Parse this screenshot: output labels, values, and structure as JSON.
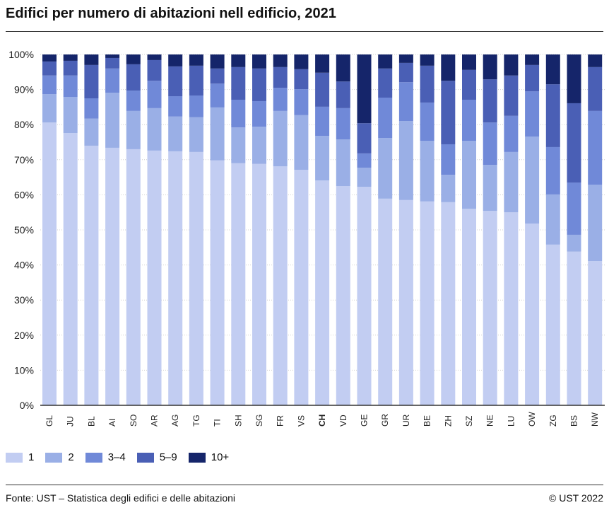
{
  "title": "Edifici per numero di abitazioni nell edificio, 2021",
  "source": "Fonte: UST – Statistica degli edifici e delle abitazioni",
  "copyright": "© UST 2022",
  "chart_data": {
    "type": "bar",
    "stacked": true,
    "title": "Edifici per numero di abitazioni nell edificio, 2021",
    "ylim": [
      0,
      100
    ],
    "yticks": [
      "0%",
      "10%",
      "20%",
      "30%",
      "40%",
      "50%",
      "60%",
      "70%",
      "80%",
      "90%",
      "100%"
    ],
    "grid": true,
    "legend_placement": "bottom-left",
    "highlight_category": "CH",
    "categories": [
      "GL",
      "JU",
      "BL",
      "AI",
      "SO",
      "AR",
      "AG",
      "TG",
      "TI",
      "SH",
      "SG",
      "FR",
      "VS",
      "CH",
      "VD",
      "GE",
      "GR",
      "UR",
      "BE",
      "ZH",
      "SZ",
      "NE",
      "LU",
      "OW",
      "ZG",
      "BS",
      "NW"
    ],
    "series": [
      {
        "name": "1",
        "color": "#c2cdf2",
        "values": [
          80.6,
          77.6,
          74.0,
          73.4,
          73.0,
          72.6,
          72.4,
          72.2,
          69.8,
          69.0,
          68.8,
          68.1,
          67.1,
          64.1,
          62.5,
          62.3,
          58.9,
          58.5,
          58.1,
          57.9,
          56.0,
          55.4,
          55.0,
          51.8,
          45.8,
          43.8,
          41.1
        ]
      },
      {
        "name": "2",
        "color": "#9aafe6",
        "values": [
          8.1,
          10.3,
          7.7,
          15.7,
          10.9,
          12.1,
          9.9,
          9.9,
          15.1,
          10.2,
          10.6,
          15.8,
          15.6,
          12.7,
          13.3,
          5.4,
          17.3,
          22.5,
          17.3,
          7.8,
          19.4,
          13.1,
          17.2,
          24.8,
          14.3,
          4.8,
          21.8
        ]
      },
      {
        "name": "3–4",
        "color": "#7089d8",
        "values": [
          5.3,
          6.1,
          5.8,
          6.9,
          5.8,
          7.8,
          5.8,
          6.2,
          6.8,
          7.9,
          7.3,
          6.6,
          7.4,
          8.3,
          8.9,
          4.1,
          11.5,
          11.1,
          10.9,
          8.7,
          11.7,
          12.1,
          10.3,
          12.9,
          13.5,
          14.9,
          21.0
        ]
      },
      {
        "name": "5–9",
        "color": "#4a5fb5",
        "values": [
          4.0,
          4.2,
          9.5,
          3.0,
          7.5,
          5.9,
          8.5,
          8.5,
          4.3,
          9.3,
          9.3,
          5.9,
          5.7,
          9.7,
          7.6,
          8.6,
          8.3,
          5.5,
          10.5,
          18.1,
          8.5,
          12.3,
          11.5,
          7.5,
          17.9,
          22.6,
          12.5
        ]
      },
      {
        "name": "10+",
        "color": "#15256a",
        "values": [
          2.0,
          1.8,
          3.0,
          1.0,
          2.8,
          1.6,
          3.4,
          3.2,
          4.0,
          3.6,
          4.0,
          3.6,
          4.2,
          5.2,
          7.7,
          19.6,
          4.0,
          2.4,
          3.2,
          7.5,
          4.4,
          7.1,
          6.0,
          3.0,
          8.5,
          13.9,
          3.6
        ]
      }
    ]
  }
}
